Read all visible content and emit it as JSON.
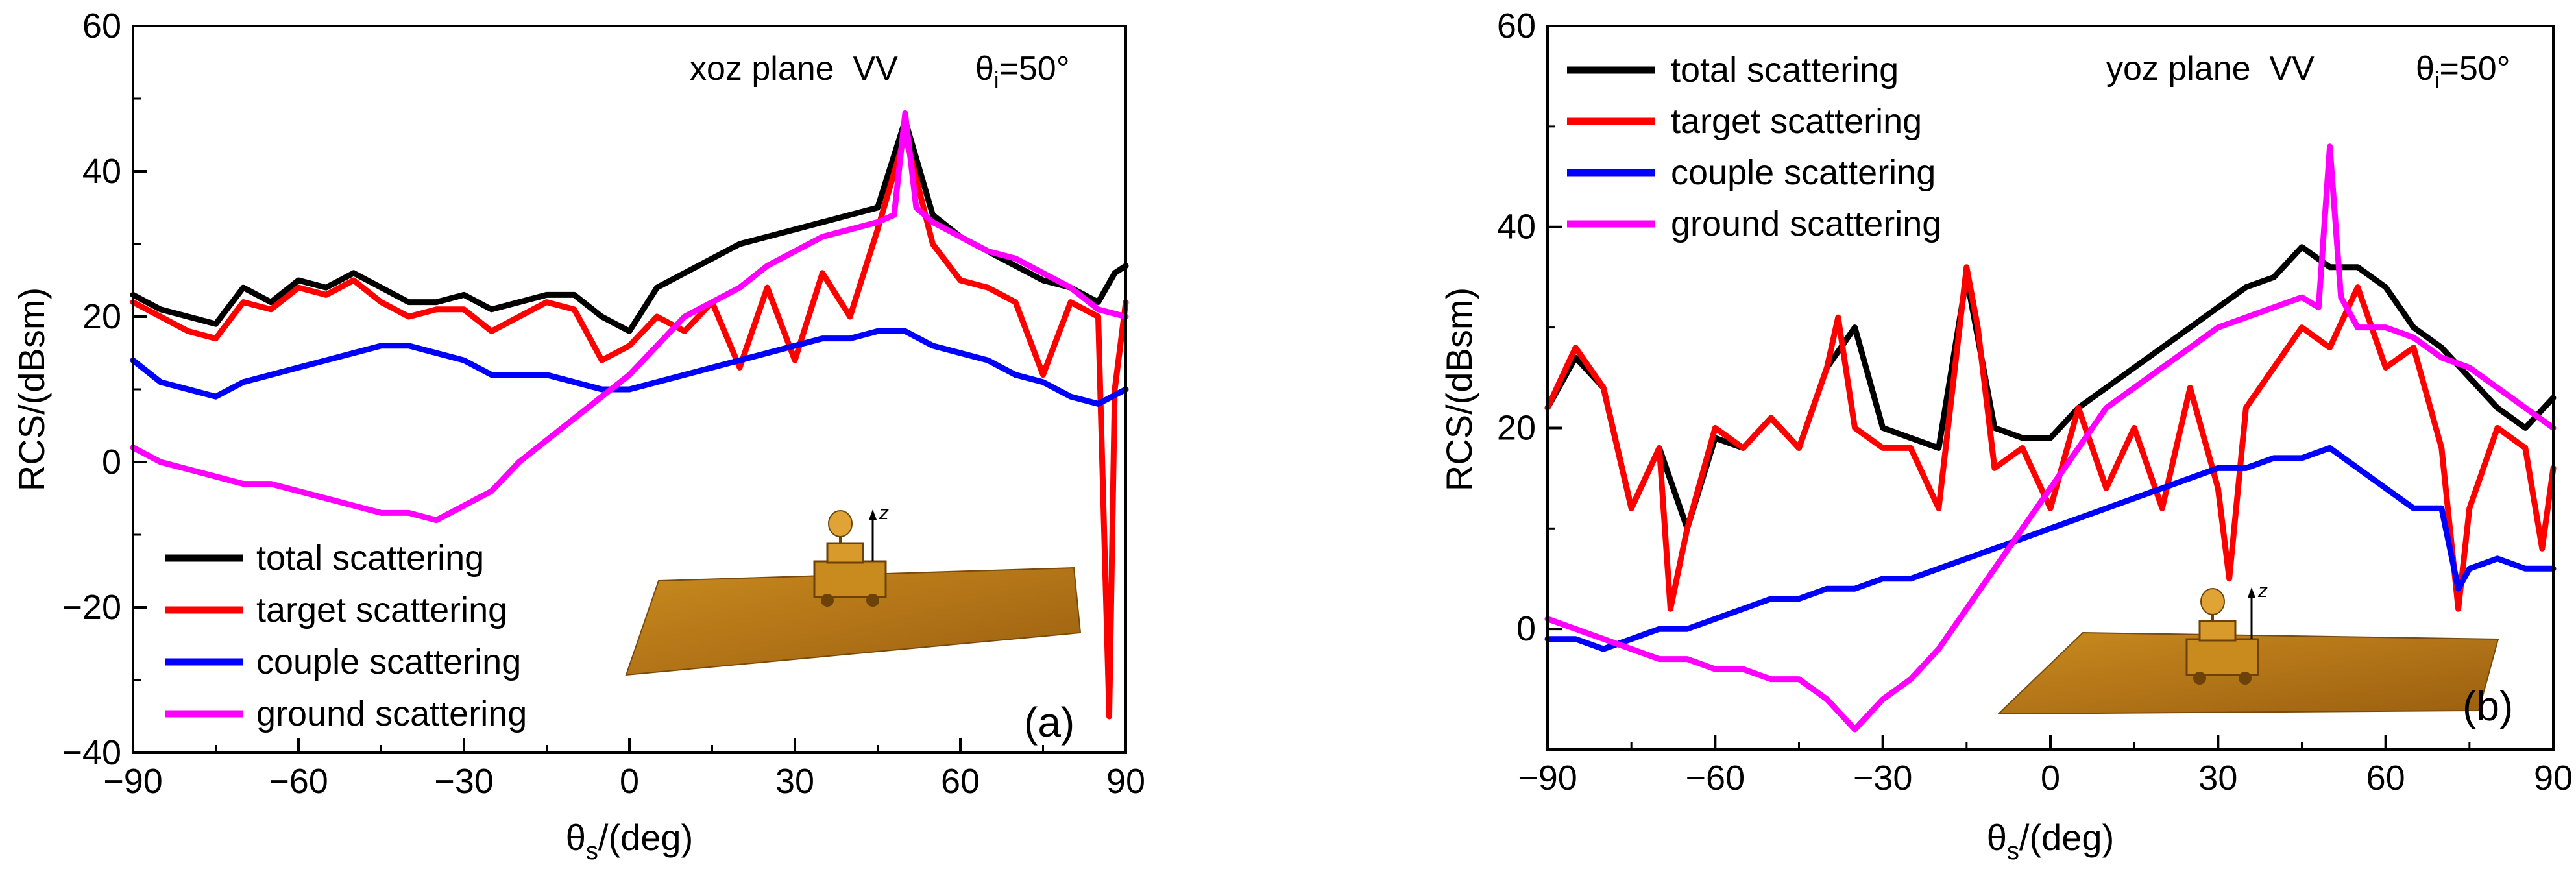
{
  "chart_data": [
    {
      "type": "line",
      "panel_label": "(a)",
      "plane_label": "xoz plane  VV",
      "incidence_label": {
        "symbol": "θ",
        "sub": "i",
        "value": "=50°"
      },
      "xlabel": {
        "symbol": "θ",
        "sub": "s",
        "rest": "/(deg)"
      },
      "ylabel": "RCS/(dBsm)",
      "xlim": [
        -90,
        90
      ],
      "ylim": [
        -40,
        60
      ],
      "xticks": [
        -90,
        -60,
        -30,
        0,
        30,
        60,
        90
      ],
      "xtick_labels": [
        "−90",
        "−60",
        "−30",
        "0",
        "30",
        "60",
        "90"
      ],
      "yticks": [
        -40,
        -20,
        0,
        20,
        40,
        60
      ],
      "ytick_labels": [
        "−40",
        "−20",
        "0",
        "20",
        "40",
        "60"
      ],
      "legend_position": "lower-left",
      "series": [
        {
          "name": "total scattering",
          "color": "#000000",
          "x": [
            -90,
            -85,
            -80,
            -75,
            -70,
            -65,
            -60,
            -55,
            -50,
            -45,
            -40,
            -35,
            -30,
            -25,
            -20,
            -15,
            -10,
            -5,
            0,
            5,
            10,
            15,
            20,
            25,
            30,
            35,
            40,
            45,
            50,
            55,
            60,
            65,
            70,
            75,
            80,
            85,
            88,
            90
          ],
          "y": [
            23,
            21,
            20,
            19,
            24,
            22,
            25,
            24,
            26,
            24,
            22,
            22,
            23,
            21,
            22,
            23,
            23,
            20,
            18,
            24,
            26,
            28,
            30,
            31,
            32,
            33,
            34,
            35,
            47,
            34,
            31,
            29,
            27,
            25,
            24,
            22,
            26,
            27
          ]
        },
        {
          "name": "target scattering",
          "color": "#ff0000",
          "x": [
            -90,
            -85,
            -80,
            -75,
            -70,
            -65,
            -60,
            -55,
            -50,
            -45,
            -40,
            -35,
            -30,
            -25,
            -20,
            -15,
            -10,
            -5,
            0,
            5,
            10,
            15,
            20,
            25,
            30,
            35,
            40,
            45,
            50,
            55,
            60,
            65,
            70,
            75,
            80,
            85,
            87,
            88,
            90
          ],
          "y": [
            22,
            20,
            18,
            17,
            22,
            21,
            24,
            23,
            25,
            22,
            20,
            21,
            21,
            18,
            20,
            22,
            21,
            14,
            16,
            20,
            18,
            22,
            13,
            24,
            14,
            26,
            20,
            32,
            45,
            30,
            25,
            24,
            22,
            12,
            22,
            20,
            -35,
            10,
            22
          ]
        },
        {
          "name": "couple scattering",
          "color": "#0000ff",
          "x": [
            -90,
            -85,
            -80,
            -75,
            -70,
            -65,
            -60,
            -55,
            -50,
            -45,
            -40,
            -35,
            -30,
            -25,
            -20,
            -15,
            -10,
            -5,
            0,
            5,
            10,
            15,
            20,
            25,
            30,
            35,
            40,
            45,
            50,
            55,
            60,
            65,
            70,
            75,
            80,
            85,
            90
          ],
          "y": [
            14,
            11,
            10,
            9,
            11,
            12,
            13,
            14,
            15,
            16,
            16,
            15,
            14,
            12,
            12,
            12,
            11,
            10,
            10,
            11,
            12,
            13,
            14,
            15,
            16,
            17,
            17,
            18,
            18,
            16,
            15,
            14,
            12,
            11,
            9,
            8,
            10
          ]
        },
        {
          "name": "ground scattering",
          "color": "#ff00ff",
          "x": [
            -90,
            -85,
            -80,
            -75,
            -70,
            -65,
            -60,
            -55,
            -50,
            -45,
            -40,
            -35,
            -30,
            -25,
            -20,
            -15,
            -10,
            -5,
            0,
            5,
            10,
            15,
            20,
            25,
            30,
            35,
            40,
            45,
            48,
            50,
            52,
            55,
            60,
            65,
            70,
            75,
            80,
            85,
            90
          ],
          "y": [
            2,
            0,
            -1,
            -2,
            -3,
            -3,
            -4,
            -5,
            -6,
            -7,
            -7,
            -8,
            -6,
            -4,
            0,
            3,
            6,
            9,
            12,
            16,
            20,
            22,
            24,
            27,
            29,
            31,
            32,
            33,
            34,
            48,
            35,
            33,
            31,
            29,
            28,
            26,
            24,
            21,
            20
          ]
        }
      ]
    },
    {
      "type": "line",
      "panel_label": "(b)",
      "plane_label": "yoz plane  VV",
      "incidence_label": {
        "symbol": "θ",
        "sub": "i",
        "value": "=50°"
      },
      "xlabel": {
        "symbol": "θ",
        "sub": "s",
        "rest": "/(deg)"
      },
      "ylabel": "RCS/(dBsm)",
      "xlim": [
        -90,
        90
      ],
      "ylim": [
        -12,
        60
      ],
      "xticks": [
        -90,
        -60,
        -30,
        0,
        30,
        60,
        90
      ],
      "xtick_labels": [
        "−90",
        "−60",
        "−30",
        "0",
        "30",
        "60",
        "90"
      ],
      "yticks": [
        0,
        20,
        40,
        60
      ],
      "ytick_labels": [
        "0",
        "20",
        "40",
        "60"
      ],
      "legend_position": "top-left",
      "series": [
        {
          "name": "total scattering",
          "color": "#000000",
          "x": [
            -90,
            -85,
            -80,
            -75,
            -70,
            -65,
            -60,
            -55,
            -50,
            -45,
            -40,
            -35,
            -30,
            -25,
            -20,
            -15,
            -10,
            -5,
            0,
            5,
            10,
            15,
            20,
            25,
            30,
            35,
            40,
            45,
            50,
            55,
            60,
            65,
            70,
            75,
            80,
            85,
            90
          ],
          "y": [
            22,
            27,
            24,
            12,
            18,
            10,
            19,
            18,
            21,
            18,
            26,
            30,
            20,
            19,
            18,
            35,
            20,
            19,
            19,
            22,
            24,
            26,
            28,
            30,
            32,
            34,
            35,
            38,
            36,
            36,
            34,
            30,
            28,
            25,
            22,
            20,
            23
          ]
        },
        {
          "name": "target scattering",
          "color": "#ff0000",
          "x": [
            -90,
            -85,
            -80,
            -75,
            -70,
            -68,
            -65,
            -60,
            -55,
            -50,
            -45,
            -40,
            -38,
            -35,
            -30,
            -25,
            -20,
            -15,
            -13,
            -10,
            -5,
            0,
            5,
            10,
            15,
            20,
            25,
            30,
            32,
            35,
            40,
            45,
            50,
            55,
            60,
            65,
            70,
            73,
            75,
            80,
            85,
            88,
            90
          ],
          "y": [
            22,
            28,
            24,
            12,
            18,
            2,
            10,
            20,
            18,
            21,
            18,
            26,
            31,
            20,
            18,
            18,
            12,
            36,
            30,
            16,
            18,
            12,
            22,
            14,
            20,
            12,
            24,
            14,
            5,
            22,
            26,
            30,
            28,
            34,
            26,
            28,
            18,
            2,
            12,
            20,
            18,
            8,
            16
          ]
        },
        {
          "name": "couple scattering",
          "color": "#0000ff",
          "x": [
            -90,
            -85,
            -80,
            -75,
            -70,
            -65,
            -60,
            -55,
            -50,
            -45,
            -40,
            -35,
            -30,
            -25,
            -20,
            -15,
            -10,
            -5,
            0,
            5,
            10,
            15,
            20,
            25,
            30,
            35,
            40,
            45,
            50,
            55,
            60,
            65,
            70,
            73,
            75,
            80,
            85,
            90
          ],
          "y": [
            -1,
            -1,
            -2,
            -1,
            0,
            0,
            1,
            2,
            3,
            3,
            4,
            4,
            5,
            5,
            6,
            7,
            8,
            9,
            10,
            11,
            12,
            13,
            14,
            15,
            16,
            16,
            17,
            17,
            18,
            16,
            14,
            12,
            12,
            4,
            6,
            7,
            6,
            6
          ]
        },
        {
          "name": "ground scattering",
          "color": "#ff00ff",
          "x": [
            -90,
            -85,
            -80,
            -75,
            -70,
            -65,
            -60,
            -55,
            -50,
            -45,
            -40,
            -35,
            -30,
            -25,
            -20,
            -15,
            -10,
            -5,
            0,
            5,
            10,
            15,
            20,
            25,
            30,
            35,
            40,
            45,
            48,
            50,
            52,
            55,
            60,
            65,
            70,
            75,
            80,
            85,
            90
          ],
          "y": [
            1,
            0,
            -1,
            -2,
            -3,
            -3,
            -4,
            -4,
            -5,
            -5,
            -7,
            -10,
            -7,
            -5,
            -2,
            2,
            6,
            10,
            14,
            18,
            22,
            24,
            26,
            28,
            30,
            31,
            32,
            33,
            32,
            48,
            33,
            30,
            30,
            29,
            27,
            26,
            24,
            22,
            20
          ]
        }
      ]
    }
  ]
}
